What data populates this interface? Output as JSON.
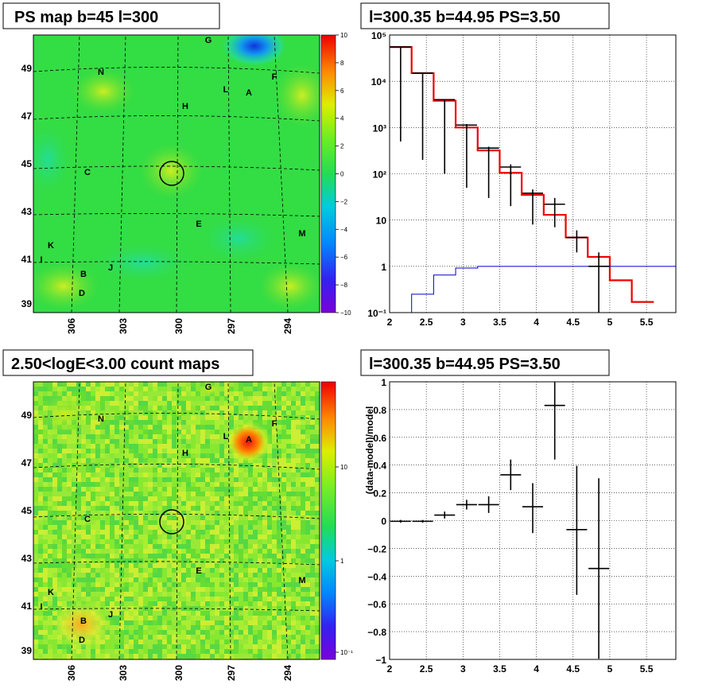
{
  "panels": {
    "ps_map_title": "PS map b=45 l=300",
    "spectrum_title": "l=300.35 b=44.95 PS=3.50",
    "count_map_title": "2.50<logE<3.00 count maps",
    "residual_title": "l=300.35 b=44.95 PS=3.50"
  },
  "maps": {
    "lat_labels": [
      "49",
      "47",
      "45",
      "43",
      "41",
      "39"
    ],
    "lon_labels": [
      "306",
      "303",
      "300",
      "297",
      "294"
    ],
    "source_letters": [
      "G",
      "N",
      "L",
      "A",
      "F",
      "H",
      "C",
      "E",
      "M",
      "K",
      "I",
      "J",
      "B",
      "D"
    ],
    "ps_palette_ticks": [
      "10",
      "8",
      "6",
      "4",
      "2",
      "0",
      "−2",
      "−4",
      "−6",
      "−8",
      "−10"
    ],
    "count_palette_ticks": [
      "10",
      "1",
      "10⁻¹"
    ],
    "colors": {
      "map_green": "#33dd44",
      "hotspot_red": "#ee2222",
      "cold_blue": "#1133dd"
    }
  },
  "chart_data": [
    {
      "type": "line",
      "title": "l=300.35 b=44.95 PS=3.50",
      "xlabel": "",
      "ylabel": "",
      "xlim": [
        2,
        5.9
      ],
      "ylim": [
        0.1,
        100000
      ],
      "yscale": "log",
      "grid": true,
      "x_ticks": [
        "2",
        "2.5",
        "3",
        "3.5",
        "4",
        "4.5",
        "5",
        "5.5"
      ],
      "y_ticks": [
        "10⁻¹",
        "1",
        "10",
        "10²",
        "10³",
        "10⁴",
        "10⁵"
      ],
      "series": [
        {
          "color": "#ee0000",
          "bin_edges": [
            2.0,
            2.3,
            2.6,
            2.9,
            3.2,
            3.5,
            3.8,
            4.1,
            4.4,
            4.7,
            5.0,
            5.3,
            5.6
          ],
          "values": [
            55000,
            15000,
            3800,
            1000,
            320,
            105,
            35,
            13,
            4.2,
            1.6,
            0.5,
            0.17
          ]
        },
        {
          "color": "#0000cc",
          "bin_edges": [
            2.0,
            2.3,
            2.6,
            2.9,
            3.2,
            3.5,
            3.8,
            4.1,
            4.4,
            4.7,
            5.0,
            5.3,
            5.6,
            5.9
          ],
          "values": [
            0.1,
            0.25,
            0.65,
            0.92,
            1.0,
            1.0,
            1.0,
            1.0,
            1.0,
            1.0,
            1.0,
            1.0,
            1.0
          ]
        },
        {
          "color": "#000000",
          "type": "errorbar",
          "x": [
            2.15,
            2.45,
            2.75,
            3.05,
            3.35,
            3.65,
            3.95,
            4.25,
            4.55,
            4.85
          ],
          "y": [
            55000,
            15000,
            4000,
            1130,
            360,
            140,
            38,
            22,
            4.2,
            1.0
          ],
          "yerr_low": [
            54500,
            14800,
            3900,
            1080,
            330,
            120,
            30,
            15,
            2.2,
            0.9
          ],
          "yerr_high": [
            55500,
            15200,
            4100,
            1190,
            385,
            160,
            46,
            30,
            6.0,
            2.0
          ]
        }
      ]
    },
    {
      "type": "scatter",
      "title": "l=300.35 b=44.95 PS=3.50",
      "xlabel": "",
      "ylabel": "(data-model)/model",
      "xlim": [
        2,
        5.9
      ],
      "ylim": [
        -1,
        1
      ],
      "grid": true,
      "x_ticks": [
        "2",
        "2.5",
        "3",
        "3.5",
        "4",
        "4.5",
        "5",
        "5.5"
      ],
      "y_ticks": [
        "−1",
        "−0.8",
        "−0.6",
        "−0.4",
        "−0.2",
        "0",
        "0.2",
        "0.4",
        "0.6",
        "0.8",
        "1"
      ],
      "series": [
        {
          "color": "#000000",
          "type": "errorbar",
          "x": [
            2.15,
            2.45,
            2.75,
            3.05,
            3.35,
            3.65,
            3.95,
            4.25,
            4.55,
            4.85
          ],
          "y": [
            -0.005,
            -0.005,
            0.04,
            0.115,
            0.115,
            0.33,
            0.1,
            0.83,
            -0.065,
            -0.345
          ],
          "yerr_low": [
            0.01,
            0.01,
            0.025,
            0.035,
            0.06,
            0.11,
            0.19,
            0.39,
            0.47,
            0.65
          ],
          "yerr_high": [
            0.01,
            0.01,
            0.025,
            0.035,
            0.06,
            0.11,
            0.17,
            0.17,
            0.46,
            0.65
          ]
        }
      ]
    }
  ]
}
